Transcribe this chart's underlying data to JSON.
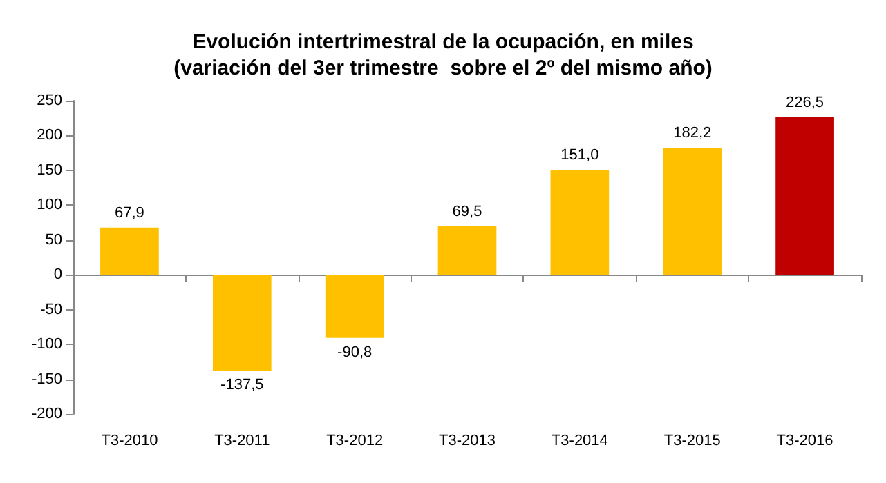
{
  "chart_data": {
    "type": "bar",
    "title": "Evolución intertrimestral de la ocupación, en miles",
    "subtitle": "(variación del 3er trimestre  sobre el 2º del mismo año)",
    "categories": [
      "T3-2010",
      "T3-2011",
      "T3-2012",
      "T3-2013",
      "T3-2014",
      "T3-2015",
      "T3-2016"
    ],
    "values": [
      67.9,
      -137.5,
      -90.8,
      69.5,
      151.0,
      182.2,
      226.5
    ],
    "value_labels": [
      "67,9",
      "-137,5",
      "-90,8",
      "69,5",
      "151,0",
      "182,2",
      "226,5"
    ],
    "colors": [
      "#ffc000",
      "#ffc000",
      "#ffc000",
      "#ffc000",
      "#ffc000",
      "#ffc000",
      "#c00000"
    ],
    "ylim": [
      -200,
      250
    ],
    "yticks": [
      -200,
      -150,
      -100,
      -50,
      0,
      50,
      100,
      150,
      200,
      250
    ]
  }
}
